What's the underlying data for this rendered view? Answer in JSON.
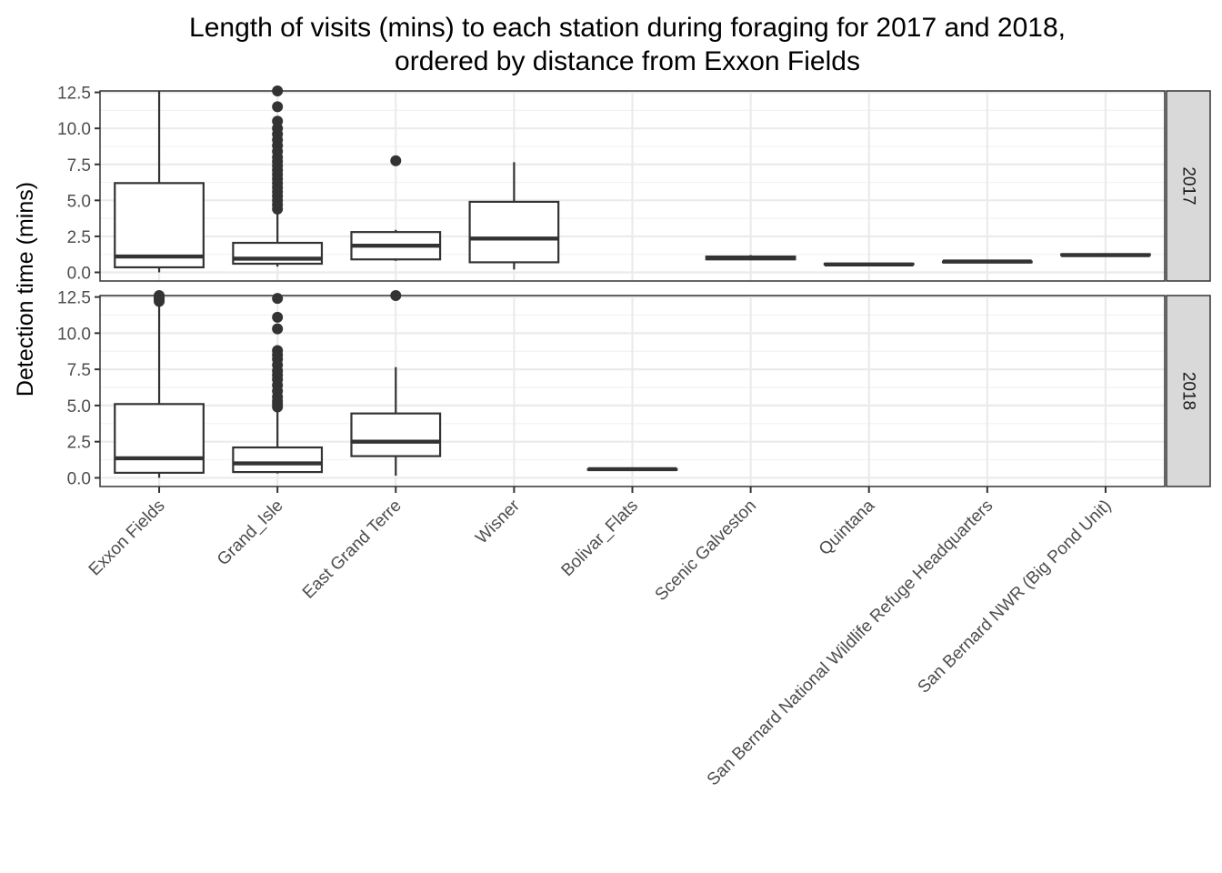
{
  "chart_data": {
    "type": "boxplot",
    "title_lines": [
      "Length of visits (mins) to each station during foraging for 2017 and 2018,",
      "ordered by distance from Exxon Fields"
    ],
    "ylabel": "Detection time (mins)",
    "xlabel": "",
    "ylim": [
      -0.6,
      12.6
    ],
    "yticks": [
      "0.0",
      "2.5",
      "5.0",
      "7.5",
      "10.0",
      "12.5"
    ],
    "ytick_values": [
      0,
      2.5,
      5,
      7.5,
      10,
      12.5
    ],
    "grid": true,
    "legend": "none",
    "categories": [
      "Exxon Fields",
      "Grand_Isle",
      "East Grand Terre",
      "Wisner",
      "Bolivar_Flats",
      "Scenic Galveston",
      "Quintana",
      "San Bernard National Wildlife Refuge Headquarters",
      "San Bernard NWR (Big Pond Unit)"
    ],
    "facets": [
      {
        "label": "2017",
        "boxes": [
          {
            "category": 0,
            "min": 0.0,
            "q1": 0.35,
            "median": 1.1,
            "q3": 6.2,
            "max": 12.6,
            "outliers": []
          },
          {
            "category": 1,
            "min": 0.4,
            "q1": 0.6,
            "median": 0.95,
            "q3": 2.05,
            "max": 4.2,
            "outliers": [
              4.4,
              4.7,
              5.0,
              5.3,
              5.6,
              5.9,
              6.2,
              6.5,
              6.8,
              7.1,
              7.4,
              7.7,
              8.0,
              8.4,
              8.8,
              9.2,
              9.6,
              10.0,
              10.5,
              11.5,
              12.6
            ]
          },
          {
            "category": 2,
            "min": 0.8,
            "q1": 0.9,
            "median": 1.85,
            "q3": 2.8,
            "max": 2.95,
            "outliers": [
              7.75
            ]
          },
          {
            "category": 3,
            "min": 0.2,
            "q1": 0.7,
            "median": 2.35,
            "q3": 4.9,
            "max": 7.65,
            "outliers": []
          },
          {
            "category": 5,
            "min": 0.85,
            "q1": 0.9,
            "median": 1.0,
            "q3": 1.1,
            "max": 1.2,
            "outliers": []
          },
          {
            "category": 6,
            "min": 0.55,
            "q1": 0.55,
            "median": 0.55,
            "q3": 0.6,
            "max": 0.6,
            "outliers": []
          },
          {
            "category": 7,
            "min": 0.7,
            "q1": 0.7,
            "median": 0.75,
            "q3": 0.75,
            "max": 0.75,
            "outliers": []
          },
          {
            "category": 8,
            "min": 1.2,
            "q1": 1.2,
            "median": 1.2,
            "q3": 1.25,
            "max": 1.25,
            "outliers": []
          }
        ]
      },
      {
        "label": "2018",
        "boxes": [
          {
            "category": 0,
            "min": 0.0,
            "q1": 0.35,
            "median": 1.35,
            "q3": 5.1,
            "max": 12.1,
            "outliers": [
              12.2,
              12.3,
              12.4,
              12.5,
              12.6
            ]
          },
          {
            "category": 1,
            "min": 0.3,
            "q1": 0.4,
            "median": 1.0,
            "q3": 2.1,
            "max": 4.6,
            "outliers": [
              4.9,
              5.1,
              5.3,
              5.6,
              6.0,
              6.4,
              6.8,
              7.1,
              7.4,
              7.8,
              8.2,
              8.5,
              8.8,
              10.3,
              11.1,
              12.4
            ]
          },
          {
            "category": 2,
            "min": 0.15,
            "q1": 1.5,
            "median": 2.5,
            "q3": 4.45,
            "max": 7.65,
            "outliers": [
              12.6
            ]
          },
          {
            "category": 4,
            "min": 0.55,
            "q1": 0.55,
            "median": 0.6,
            "q3": 0.6,
            "max": 0.65,
            "outliers": []
          }
        ]
      }
    ]
  }
}
